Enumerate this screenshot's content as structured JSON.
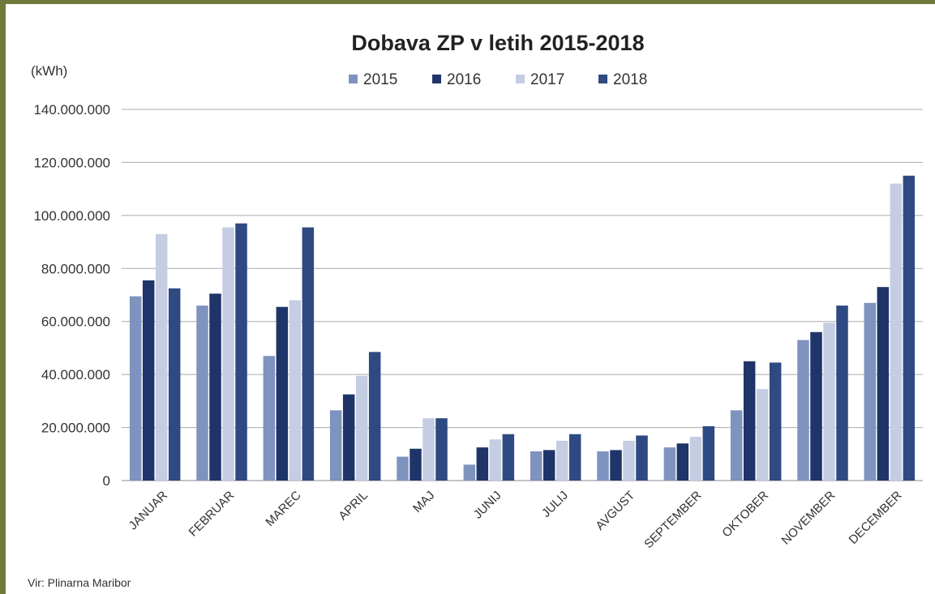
{
  "chart_data": {
    "type": "bar",
    "title": "Dobava ZP v letih 2015-2018",
    "ylabel": "(kWh)",
    "xlabel": "",
    "source": "Vir: Plinarna Maribor",
    "ylim": [
      0,
      140000000
    ],
    "yticks": [
      0,
      20000000,
      40000000,
      60000000,
      80000000,
      100000000,
      120000000,
      140000000
    ],
    "ytick_labels": [
      "0",
      "20.000.000",
      "40.000.000",
      "60.000.000",
      "80.000.000",
      "100.000.000",
      "120.000.000",
      "140.000.000"
    ],
    "grid": true,
    "legend_position": "top-center",
    "categories": [
      "JANUAR",
      "FEBRUAR",
      "MAREC",
      "APRIL",
      "MAJ",
      "JUNIJ",
      "JULIJ",
      "AVGUST",
      "SEPTEMBER",
      "OKTOBER",
      "NOVEMBER",
      "DECEMBER"
    ],
    "series": [
      {
        "name": "2015",
        "color": "#7f93bf",
        "values": [
          69500000,
          66000000,
          47000000,
          26500000,
          9000000,
          6000000,
          11000000,
          11000000,
          12500000,
          26500000,
          53000000,
          67000000
        ]
      },
      {
        "name": "2016",
        "color": "#1f3569",
        "values": [
          75500000,
          70500000,
          65500000,
          32500000,
          12000000,
          12500000,
          11500000,
          11500000,
          14000000,
          45000000,
          56000000,
          73000000
        ]
      },
      {
        "name": "2017",
        "color": "#c5cde3",
        "values": [
          93000000,
          95500000,
          68000000,
          39500000,
          23500000,
          15500000,
          15000000,
          15000000,
          16500000,
          34500000,
          59500000,
          112000000
        ]
      },
      {
        "name": "2018",
        "color": "#2f4a82",
        "values": [
          72500000,
          97000000,
          95500000,
          48500000,
          23500000,
          17500000,
          17500000,
          17000000,
          20500000,
          44500000,
          66000000,
          115000000
        ]
      }
    ]
  }
}
